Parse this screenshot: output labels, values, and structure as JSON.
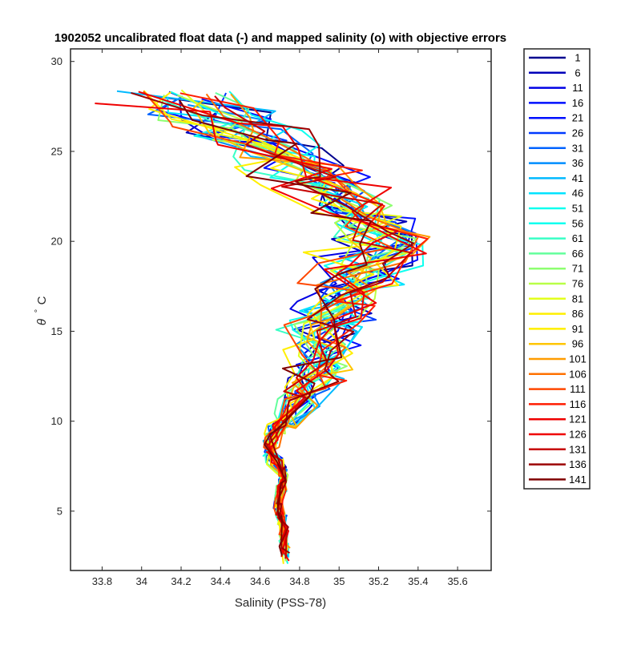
{
  "chart_data": {
    "type": "line",
    "title": "1902052 uncalibrated float data (-) and mapped salinity (o) with objective errors",
    "xlabel": "Salinity (PSS-78)",
    "ylabel_symbol": "θ",
    "ylabel_degree": "°",
    "ylabel_unit": "C",
    "xlim": [
      33.64,
      35.77
    ],
    "ylim": [
      1.7,
      30.7
    ],
    "x_ticks": [
      33.8,
      34,
      34.2,
      34.4,
      34.6,
      34.8,
      35,
      35.2,
      35.4,
      35.6
    ],
    "x_tick_labels": [
      "33.8",
      "34",
      "34.2",
      "34.4",
      "34.6",
      "34.8",
      "35",
      "35.2",
      "35.4",
      "35.6"
    ],
    "y_ticks": [
      5,
      10,
      15,
      20,
      25,
      30
    ],
    "y_tick_labels": [
      "5",
      "10",
      "15",
      "20",
      "25",
      "30"
    ],
    "grid": false,
    "legend_placement": "outside-right",
    "legend": [
      "1",
      "6",
      "11",
      "16",
      "21",
      "26",
      "31",
      "36",
      "41",
      "46",
      "51",
      "56",
      "61",
      "66",
      "71",
      "76",
      "81",
      "86",
      "91",
      "96",
      "101",
      "106",
      "111",
      "116",
      "121",
      "126",
      "131",
      "136",
      "141"
    ],
    "colormap": "jet",
    "colors": [
      "#00008f",
      "#0000b9",
      "#0000e4",
      "#000eff",
      "#0039ff",
      "#0063ff",
      "#008eff",
      "#00b9ff",
      "#00e3ff",
      "#0effef",
      "#39ffc6",
      "#63ff9c",
      "#8eff71",
      "#b9ff47",
      "#e3ff1c",
      "#ffef00",
      "#ffc600",
      "#ff9c00",
      "#ff7100",
      "#ff4700",
      "#ff1c00",
      "#ef0000",
      "#c60000",
      "#9c0000",
      "#800000"
    ],
    "series_theta": [
      28,
      27,
      26,
      25,
      24,
      23,
      22,
      21,
      20,
      19,
      18,
      17,
      16,
      15,
      14,
      13,
      12,
      11,
      10,
      9.5,
      9,
      8.5,
      8,
      7.5,
      7,
      6.5,
      6,
      5.5,
      5,
      4.5,
      4,
      3.5,
      3,
      2.5
    ],
    "series_base_salinity": [
      34.12,
      34.32,
      34.5,
      34.68,
      34.82,
      34.95,
      35.06,
      35.15,
      35.2,
      35.16,
      35.08,
      35.0,
      34.95,
      34.92,
      34.9,
      34.88,
      34.86,
      34.8,
      34.72,
      34.68,
      34.66,
      34.64,
      34.66,
      34.7,
      34.72,
      34.71,
      34.7,
      34.69,
      34.7,
      34.71,
      34.72,
      34.72,
      34.72,
      34.73
    ],
    "series_spread": [
      0.32,
      0.3,
      0.28,
      0.26,
      0.26,
      0.26,
      0.26,
      0.24,
      0.24,
      0.26,
      0.26,
      0.24,
      0.22,
      0.2,
      0.18,
      0.16,
      0.14,
      0.1,
      0.06,
      0.04,
      0.03,
      0.03,
      0.03,
      0.02,
      0.02,
      0.02,
      0.02,
      0.02,
      0.02,
      0.02,
      0.02,
      0.02,
      0.02,
      0.02
    ]
  }
}
